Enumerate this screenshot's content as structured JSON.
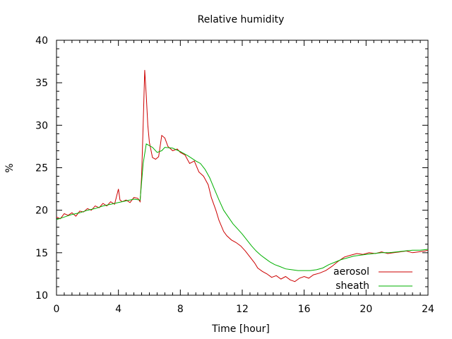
{
  "chart_data": {
    "type": "line",
    "title": "Relative humidity",
    "xlabel": "Time [hour]",
    "ylabel": "%",
    "xlim": [
      0,
      24
    ],
    "ylim": [
      10,
      40
    ],
    "xticks": [
      0,
      4,
      8,
      12,
      16,
      20,
      24
    ],
    "yticks": [
      10,
      15,
      20,
      25,
      30,
      35,
      40
    ],
    "grid": false,
    "legend": "inside-bottom-right",
    "series": [
      {
        "name": "aerosol",
        "color": "#cc0000",
        "points": [
          [
            0,
            19.2
          ],
          [
            0.25,
            19.0
          ],
          [
            0.5,
            19.6
          ],
          [
            0.75,
            19.4
          ],
          [
            1,
            19.7
          ],
          [
            1.25,
            19.3
          ],
          [
            1.5,
            19.9
          ],
          [
            1.75,
            19.8
          ],
          [
            2,
            20.2
          ],
          [
            2.25,
            20.0
          ],
          [
            2.5,
            20.5
          ],
          [
            2.75,
            20.3
          ],
          [
            3,
            20.8
          ],
          [
            3.25,
            20.5
          ],
          [
            3.5,
            21.0
          ],
          [
            3.75,
            20.7
          ],
          [
            4,
            22.5
          ],
          [
            4.1,
            21.2
          ],
          [
            4.25,
            21.0
          ],
          [
            4.5,
            21.2
          ],
          [
            4.75,
            20.9
          ],
          [
            5,
            21.5
          ],
          [
            5.25,
            21.4
          ],
          [
            5.4,
            21.0
          ],
          [
            5.5,
            24.0
          ],
          [
            5.6,
            30.0
          ],
          [
            5.7,
            36.5
          ],
          [
            5.8,
            33.5
          ],
          [
            5.9,
            30.0
          ],
          [
            6.0,
            28.0
          ],
          [
            6.2,
            26.2
          ],
          [
            6.4,
            26.0
          ],
          [
            6.6,
            26.3
          ],
          [
            6.8,
            28.8
          ],
          [
            7.0,
            28.5
          ],
          [
            7.2,
            27.5
          ],
          [
            7.5,
            27.0
          ],
          [
            7.8,
            27.2
          ],
          [
            8.0,
            26.8
          ],
          [
            8.3,
            26.5
          ],
          [
            8.6,
            25.5
          ],
          [
            8.9,
            25.8
          ],
          [
            9.2,
            24.5
          ],
          [
            9.5,
            24.0
          ],
          [
            9.8,
            23.0
          ],
          [
            10.0,
            21.5
          ],
          [
            10.3,
            20.0
          ],
          [
            10.5,
            18.8
          ],
          [
            10.8,
            17.5
          ],
          [
            11.0,
            17.0
          ],
          [
            11.3,
            16.5
          ],
          [
            11.6,
            16.2
          ],
          [
            11.9,
            15.8
          ],
          [
            12.2,
            15.2
          ],
          [
            12.5,
            14.5
          ],
          [
            12.8,
            13.8
          ],
          [
            13.0,
            13.2
          ],
          [
            13.3,
            12.8
          ],
          [
            13.6,
            12.5
          ],
          [
            13.9,
            12.1
          ],
          [
            14.2,
            12.3
          ],
          [
            14.5,
            11.9
          ],
          [
            14.8,
            12.2
          ],
          [
            15.1,
            11.8
          ],
          [
            15.4,
            11.6
          ],
          [
            15.7,
            12.0
          ],
          [
            16.0,
            12.2
          ],
          [
            16.3,
            12.0
          ],
          [
            16.6,
            12.4
          ],
          [
            17.0,
            12.6
          ],
          [
            17.4,
            12.9
          ],
          [
            17.8,
            13.4
          ],
          [
            18.2,
            14.0
          ],
          [
            18.6,
            14.5
          ],
          [
            19.0,
            14.7
          ],
          [
            19.4,
            14.9
          ],
          [
            19.8,
            14.8
          ],
          [
            20.2,
            15.0
          ],
          [
            20.6,
            14.9
          ],
          [
            21.0,
            15.1
          ],
          [
            21.4,
            14.9
          ],
          [
            21.8,
            15.0
          ],
          [
            22.2,
            15.1
          ],
          [
            22.6,
            15.2
          ],
          [
            23.0,
            15.0
          ],
          [
            23.4,
            15.1
          ],
          [
            23.8,
            15.2
          ],
          [
            24.0,
            15.3
          ]
        ]
      },
      {
        "name": "sheath",
        "color": "#00b000",
        "points": [
          [
            0,
            18.9
          ],
          [
            0.5,
            19.2
          ],
          [
            1,
            19.5
          ],
          [
            1.5,
            19.7
          ],
          [
            2,
            20.0
          ],
          [
            2.5,
            20.2
          ],
          [
            3,
            20.5
          ],
          [
            3.5,
            20.7
          ],
          [
            4,
            20.9
          ],
          [
            4.5,
            21.1
          ],
          [
            5,
            21.3
          ],
          [
            5.4,
            21.2
          ],
          [
            5.6,
            25.5
          ],
          [
            5.8,
            27.8
          ],
          [
            6.0,
            27.6
          ],
          [
            6.2,
            27.4
          ],
          [
            6.5,
            26.8
          ],
          [
            6.8,
            27.0
          ],
          [
            7.0,
            27.4
          ],
          [
            7.5,
            27.3
          ],
          [
            8.0,
            26.9
          ],
          [
            8.5,
            26.4
          ],
          [
            9.0,
            25.8
          ],
          [
            9.3,
            25.5
          ],
          [
            9.6,
            24.8
          ],
          [
            9.9,
            23.8
          ],
          [
            10.2,
            22.5
          ],
          [
            10.5,
            21.2
          ],
          [
            10.8,
            20.0
          ],
          [
            11.1,
            19.2
          ],
          [
            11.4,
            18.4
          ],
          [
            11.7,
            17.8
          ],
          [
            12.0,
            17.2
          ],
          [
            12.3,
            16.5
          ],
          [
            12.6,
            15.8
          ],
          [
            12.9,
            15.2
          ],
          [
            13.2,
            14.7
          ],
          [
            13.5,
            14.3
          ],
          [
            13.8,
            13.9
          ],
          [
            14.1,
            13.6
          ],
          [
            14.4,
            13.4
          ],
          [
            14.8,
            13.1
          ],
          [
            15.2,
            13.0
          ],
          [
            15.6,
            12.9
          ],
          [
            16.0,
            12.9
          ],
          [
            16.4,
            12.9
          ],
          [
            16.8,
            13.0
          ],
          [
            17.2,
            13.2
          ],
          [
            17.6,
            13.6
          ],
          [
            18.0,
            13.9
          ],
          [
            18.4,
            14.2
          ],
          [
            18.8,
            14.4
          ],
          [
            19.2,
            14.6
          ],
          [
            19.6,
            14.7
          ],
          [
            20.0,
            14.8
          ],
          [
            20.5,
            14.9
          ],
          [
            21.0,
            15.0
          ],
          [
            21.5,
            15.0
          ],
          [
            22.0,
            15.1
          ],
          [
            22.5,
            15.2
          ],
          [
            23.0,
            15.3
          ],
          [
            23.5,
            15.3
          ],
          [
            24.0,
            15.4
          ]
        ]
      }
    ]
  }
}
